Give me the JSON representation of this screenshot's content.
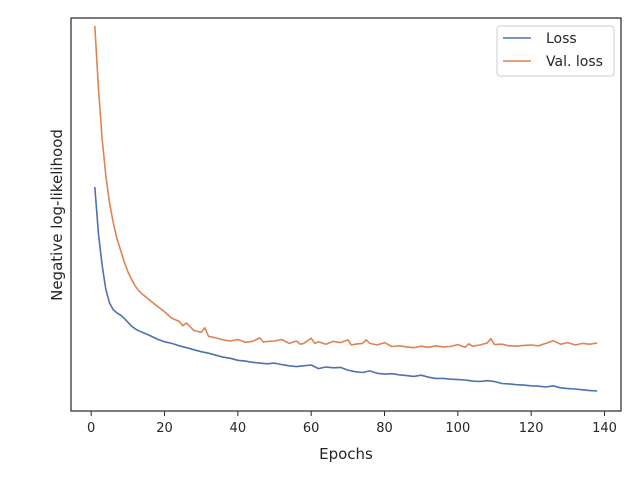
{
  "chart_data": {
    "type": "line",
    "xlabel": "Epochs",
    "ylabel": "Negative log-likelihood",
    "xlim": [
      -5.5,
      144.5
    ],
    "ylim": [
      0,
      1
    ],
    "x_ticks": [
      0,
      20,
      40,
      60,
      80,
      100,
      120,
      140
    ],
    "y_ticks_shown": false,
    "grid": false,
    "legend_position": "top-right",
    "series": [
      {
        "name": "Loss",
        "color": "#4c72b0",
        "x": [
          1,
          2,
          3,
          4,
          5,
          6,
          7,
          8,
          9,
          10,
          11,
          12,
          13,
          14,
          16,
          18,
          20,
          22,
          24,
          26,
          28,
          30,
          32,
          34,
          36,
          38,
          40,
          42,
          44,
          46,
          48,
          50,
          52,
          54,
          56,
          58,
          60,
          62,
          64,
          66,
          68,
          70,
          72,
          74,
          76,
          78,
          80,
          82,
          84,
          86,
          88,
          90,
          92,
          94,
          96,
          98,
          100,
          102,
          104,
          106,
          108,
          110,
          112,
          114,
          116,
          118,
          120,
          122,
          124,
          126,
          128,
          130,
          132,
          134,
          136,
          138
        ],
        "values": [
          0.57,
          0.45,
          0.37,
          0.31,
          0.275,
          0.258,
          0.25,
          0.244,
          0.236,
          0.226,
          0.216,
          0.209,
          0.204,
          0.2,
          0.192,
          0.183,
          0.176,
          0.172,
          0.166,
          0.161,
          0.156,
          0.151,
          0.147,
          0.142,
          0.137,
          0.134,
          0.129,
          0.127,
          0.124,
          0.122,
          0.12,
          0.122,
          0.118,
          0.115,
          0.113,
          0.115,
          0.117,
          0.108,
          0.112,
          0.11,
          0.111,
          0.104,
          0.1,
          0.098,
          0.102,
          0.096,
          0.094,
          0.095,
          0.092,
          0.09,
          0.088,
          0.091,
          0.086,
          0.083,
          0.083,
          0.081,
          0.08,
          0.079,
          0.076,
          0.075,
          0.077,
          0.075,
          0.07,
          0.069,
          0.067,
          0.066,
          0.064,
          0.063,
          0.061,
          0.064,
          0.059,
          0.057,
          0.056,
          0.054,
          0.052,
          0.051
        ]
      },
      {
        "name": "Val. loss",
        "color": "#dd8452",
        "x": [
          1,
          2,
          3,
          4,
          5,
          6,
          7,
          8,
          9,
          10,
          11,
          12,
          13,
          14,
          16,
          18,
          20,
          22,
          24,
          25,
          26,
          28,
          30,
          31,
          32,
          34,
          36,
          38,
          40,
          42,
          44,
          46,
          47,
          48,
          50,
          52,
          54,
          56,
          57,
          58,
          60,
          61,
          62,
          64,
          66,
          68,
          70,
          71,
          72,
          74,
          75,
          76,
          78,
          80,
          82,
          84,
          86,
          88,
          90,
          92,
          94,
          96,
          98,
          100,
          102,
          103,
          104,
          106,
          108,
          109,
          110,
          112,
          114,
          116,
          118,
          120,
          122,
          124,
          126,
          128,
          130,
          132,
          134,
          136,
          138
        ],
        "values": [
          0.98,
          0.82,
          0.69,
          0.6,
          0.53,
          0.48,
          0.44,
          0.41,
          0.38,
          0.355,
          0.335,
          0.318,
          0.306,
          0.297,
          0.282,
          0.267,
          0.253,
          0.236,
          0.228,
          0.217,
          0.224,
          0.205,
          0.2,
          0.212,
          0.19,
          0.186,
          0.181,
          0.178,
          0.182,
          0.175,
          0.177,
          0.186,
          0.175,
          0.177,
          0.178,
          0.182,
          0.172,
          0.178,
          0.17,
          0.172,
          0.185,
          0.172,
          0.176,
          0.17,
          0.177,
          0.174,
          0.181,
          0.168,
          0.17,
          0.172,
          0.181,
          0.172,
          0.168,
          0.174,
          0.164,
          0.166,
          0.163,
          0.161,
          0.165,
          0.162,
          0.166,
          0.163,
          0.164,
          0.169,
          0.162,
          0.171,
          0.165,
          0.168,
          0.173,
          0.184,
          0.169,
          0.17,
          0.166,
          0.165,
          0.167,
          0.168,
          0.166,
          0.172,
          0.179,
          0.17,
          0.174,
          0.168,
          0.172,
          0.17,
          0.173
        ]
      }
    ]
  }
}
